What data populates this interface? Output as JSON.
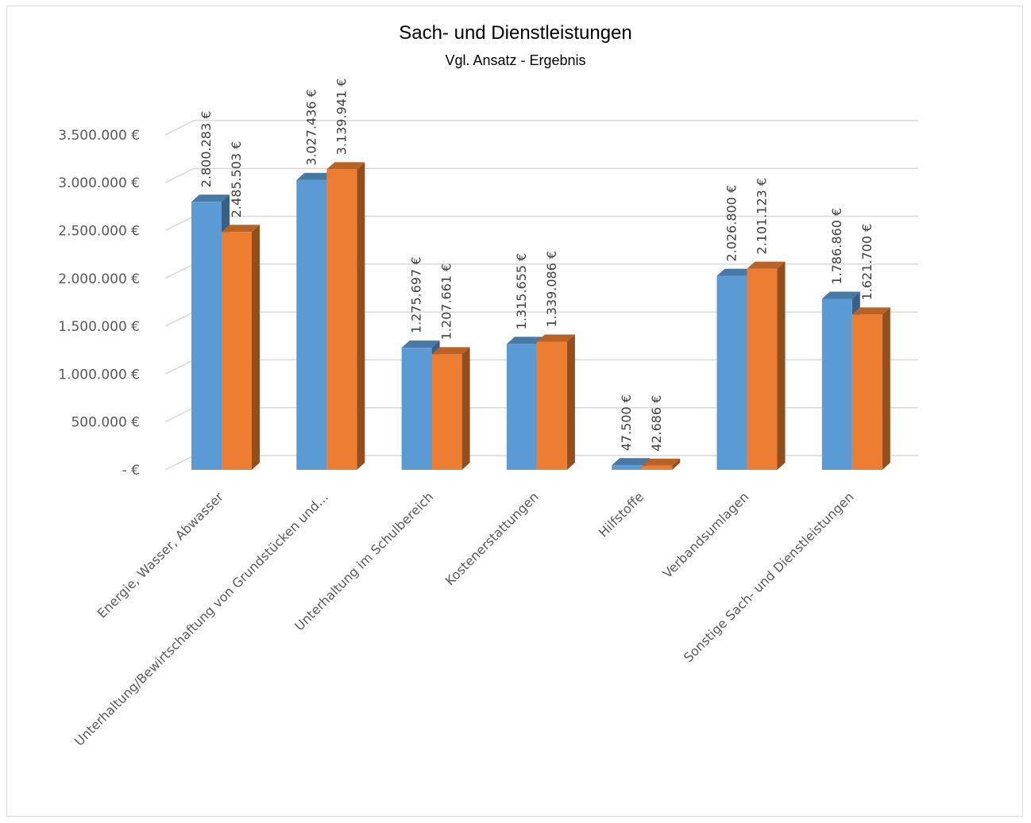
{
  "chart_data": {
    "type": "bar",
    "title": "Sach- und Dienstleistungen",
    "subtitle": "Vgl. Ansatz - Ergebnis",
    "categories": [
      "Energie, Wasser, Abwasser",
      "Unterhaltung/Bewirtschaftung von Grundstücken und…",
      "Unterhaltung im Schulbereich",
      "Kostenerstattungen",
      "Hilfstoffe",
      "Verbandsumlagen",
      "Sonstige Sach- und Dienstleistungen"
    ],
    "series": [
      {
        "color": "#5b9bd5",
        "values": [
          2800283,
          3027436,
          1275697,
          1315655,
          47500,
          2026800,
          1786860
        ],
        "labels": [
          "2.800.283 €",
          "3.027.436 €",
          "1.275.697 €",
          "1.315.655 €",
          "47.500 €",
          "2.026.800 €",
          "1.786.860 €"
        ]
      },
      {
        "color": "#ed7d31",
        "values": [
          2485503,
          3139941,
          1207661,
          1339086,
          42686,
          2101123,
          1621700
        ],
        "labels": [
          "2.485.503 €",
          "3.139.941 €",
          "1.207.661 €",
          "1.339.086 €",
          "42.686 €",
          "2.101.123 €",
          "1.621.700 €"
        ]
      }
    ],
    "ylim": [
      0,
      3500000
    ],
    "yticks": [
      0,
      500000,
      1000000,
      1500000,
      2000000,
      2500000,
      3000000,
      3500000
    ],
    "ytick_labels": [
      "-   €",
      "500.000 €",
      "1.000.000 €",
      "1.500.000 €",
      "2.000.000 €",
      "2.500.000 €",
      "3.000.000 €",
      "3.500.000 €"
    ],
    "xlabel": "",
    "ylabel": "",
    "grid": true,
    "legend": "none",
    "style": "3d-column"
  }
}
